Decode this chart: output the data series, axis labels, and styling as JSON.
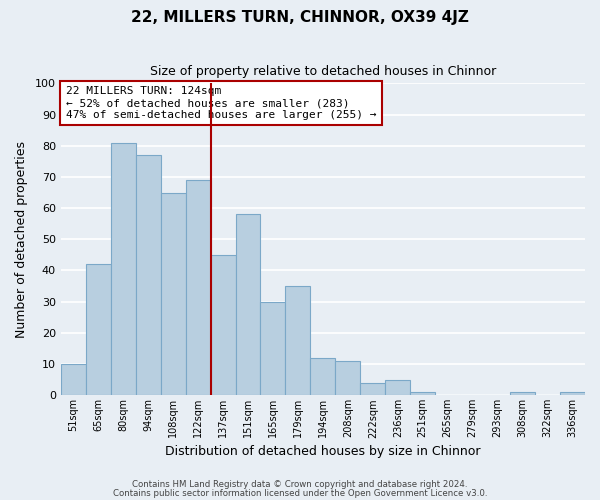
{
  "title": "22, MILLERS TURN, CHINNOR, OX39 4JZ",
  "subtitle": "Size of property relative to detached houses in Chinnor",
  "xlabel": "Distribution of detached houses by size in Chinnor",
  "ylabel": "Number of detached properties",
  "bar_labels": [
    "51sqm",
    "65sqm",
    "80sqm",
    "94sqm",
    "108sqm",
    "122sqm",
    "137sqm",
    "151sqm",
    "165sqm",
    "179sqm",
    "194sqm",
    "208sqm",
    "222sqm",
    "236sqm",
    "251sqm",
    "265sqm",
    "279sqm",
    "293sqm",
    "308sqm",
    "322sqm",
    "336sqm"
  ],
  "bar_values": [
    10,
    42,
    81,
    77,
    65,
    69,
    45,
    58,
    30,
    35,
    12,
    11,
    4,
    5,
    1,
    0,
    0,
    0,
    1,
    0,
    1
  ],
  "bar_color": "#b8cfe0",
  "bar_edge_color": "#7ba8c8",
  "highlight_index": 5,
  "highlight_line_color": "#aa0000",
  "ylim": [
    0,
    100
  ],
  "yticks": [
    0,
    10,
    20,
    30,
    40,
    50,
    60,
    70,
    80,
    90,
    100
  ],
  "annotation_title": "22 MILLERS TURN: 124sqm",
  "annotation_line1": "← 52% of detached houses are smaller (283)",
  "annotation_line2": "47% of semi-detached houses are larger (255) →",
  "annotation_box_color": "#ffffff",
  "annotation_box_edge": "#aa0000",
  "footer1": "Contains HM Land Registry data © Crown copyright and database right 2024.",
  "footer2": "Contains public sector information licensed under the Open Government Licence v3.0.",
  "background_color": "#e8eef4",
  "plot_bg_color": "#e8eef4",
  "grid_color": "#ffffff",
  "title_fontsize": 11,
  "subtitle_fontsize": 9
}
